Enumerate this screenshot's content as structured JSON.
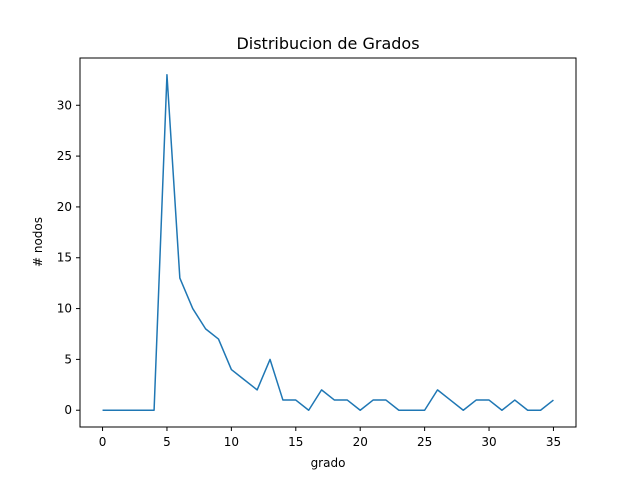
{
  "chart_data": {
    "type": "line",
    "title": "Distribucion de Grados",
    "xlabel": "grado",
    "ylabel": "# nodos",
    "xlim": [
      -1.75,
      36.75
    ],
    "ylim": [
      -1.65,
      34.65
    ],
    "xticks": [
      0,
      5,
      10,
      15,
      20,
      25,
      30,
      35
    ],
    "yticks": [
      0,
      5,
      10,
      15,
      20,
      25,
      30
    ],
    "grid": false,
    "series": [
      {
        "color": "#1f77b4",
        "x": [
          0,
          1,
          2,
          3,
          4,
          5,
          6,
          7,
          8,
          9,
          10,
          11,
          12,
          13,
          14,
          15,
          16,
          17,
          18,
          19,
          20,
          21,
          22,
          23,
          24,
          25,
          26,
          27,
          28,
          29,
          30,
          31,
          32,
          33,
          34,
          35
        ],
        "y": [
          0,
          0,
          0,
          0,
          0,
          33,
          13,
          10,
          8,
          7,
          4,
          3,
          2,
          5,
          1,
          1,
          0,
          2,
          1,
          1,
          0,
          1,
          1,
          0,
          0,
          0,
          2,
          1,
          0,
          1,
          1,
          0,
          1,
          0,
          0,
          1
        ]
      }
    ]
  }
}
